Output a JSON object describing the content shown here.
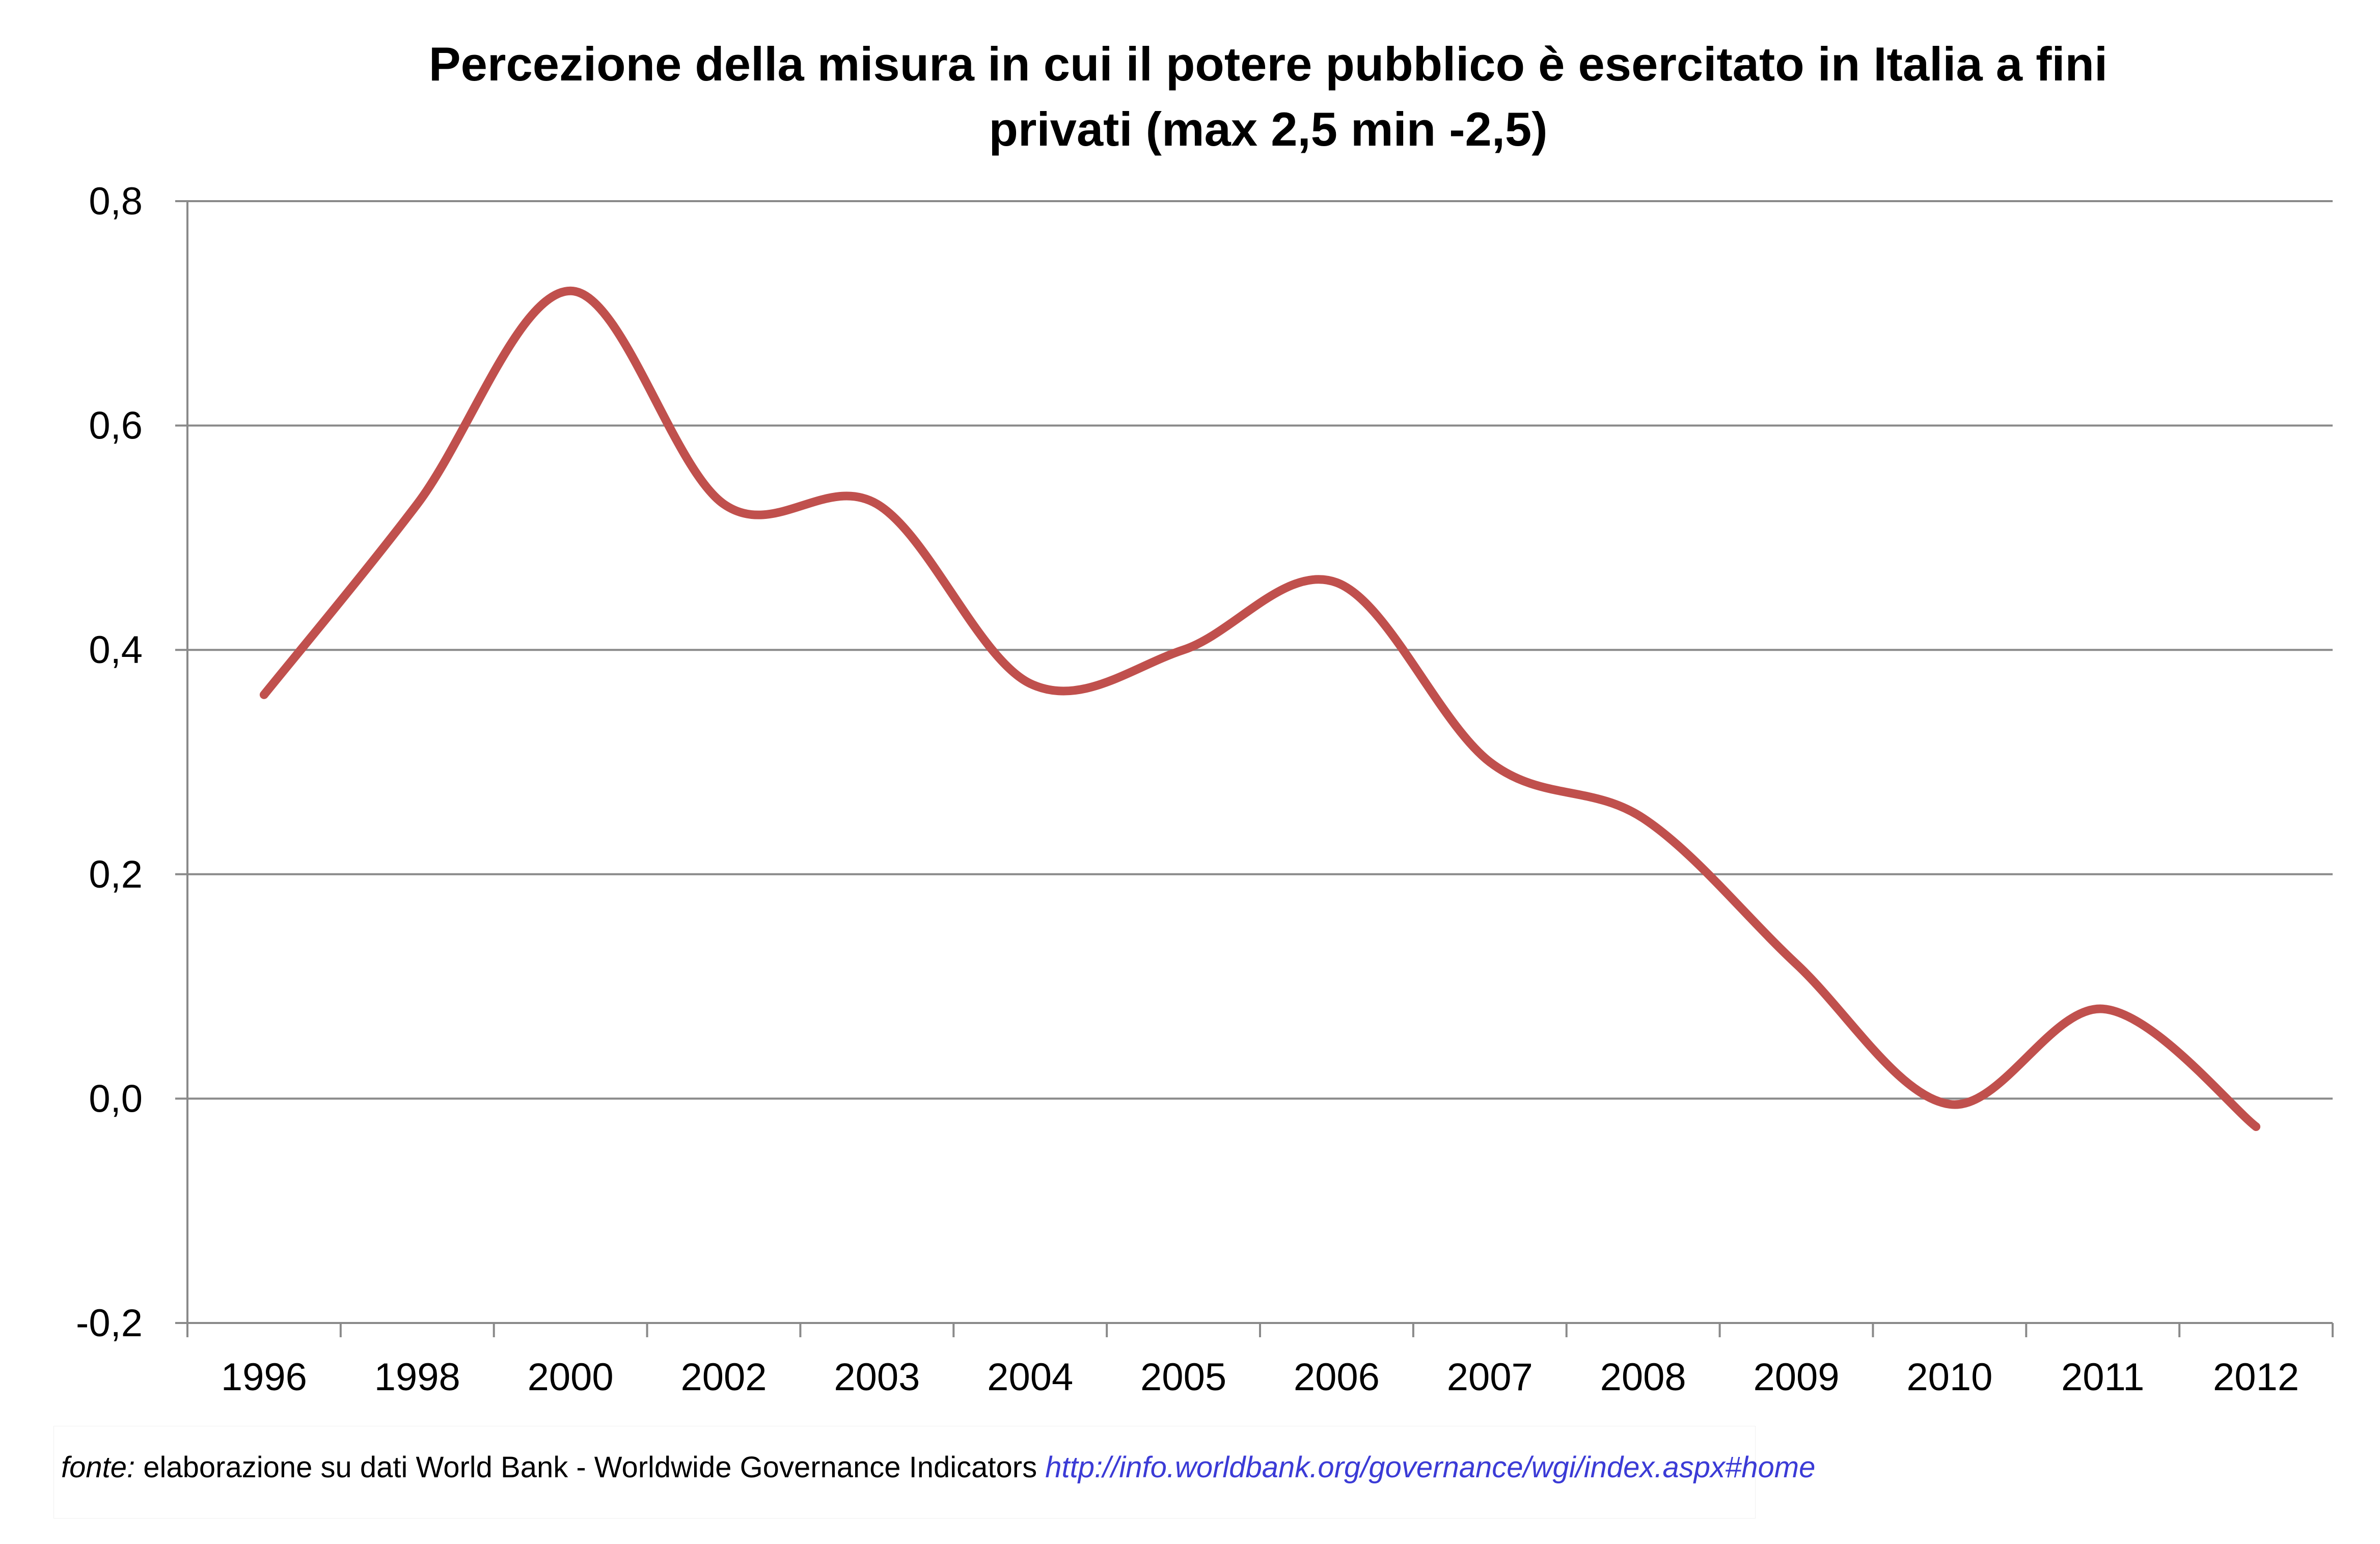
{
  "chart_data": {
    "type": "line",
    "title_lines": [
      "Percezione della misura in cui il potere pubblico è esercitato in Italia a fini",
      "privati (max 2,5  min -2,5)"
    ],
    "xlabel": "",
    "ylabel": "",
    "categories": [
      "1996",
      "1998",
      "2000",
      "2002",
      "2003",
      "2004",
      "2005",
      "2006",
      "2007",
      "2008",
      "2009",
      "2010",
      "2011",
      "2012"
    ],
    "series": [
      {
        "values": [
          0.36,
          0.53,
          0.72,
          0.53,
          0.53,
          0.37,
          0.4,
          0.46,
          0.3,
          0.25,
          0.12,
          -0.005,
          0.08,
          -0.025
        ]
      }
    ],
    "ylim": [
      -0.2,
      0.8
    ],
    "yticks": [
      -0.2,
      0.0,
      0.2,
      0.4,
      0.6,
      0.8
    ],
    "ytick_labels": [
      "-0,2",
      "0,0",
      "0,2",
      "0,4",
      "0,6",
      "0,8"
    ],
    "grid": true,
    "legend": "none",
    "smoothed": true,
    "line_color": "#c0504d"
  },
  "source": {
    "label": "fonte:",
    "text": " elaborazione su dati World Bank  - Worldwide Governance Indicators ",
    "link": "http://info.worldbank.org/governance/wgi/index.aspx#home"
  }
}
